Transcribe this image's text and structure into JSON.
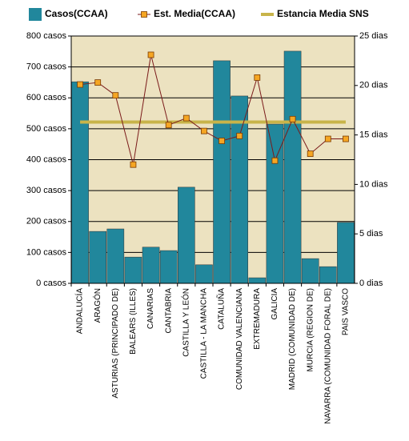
{
  "chart_data": {
    "type": "bar_line",
    "categories": [
      "ANDALUCÍA",
      "ARAGÓN",
      "ASTURIAS (PRINCIPADO DE)",
      "BALEARS (ILLES)",
      "CANARIAS",
      "CANTABRIA",
      "CASTILLA Y LEÓN",
      "CASTILLA - LA MANCHA",
      "CATALUÑA",
      "COMUNIDAD VALENCIANA",
      "EXTREMADURA",
      "GALICIA",
      "MADRID (COMUNIDAD DE)",
      "MURCIA (REGION DE)",
      "NAVARRA (COMUNIDAD FORAL DE)",
      "PAIS VASCO"
    ],
    "series": [
      {
        "name": "Casos(CCAA)",
        "type": "bar",
        "color": "#21879c",
        "values": [
          652,
          168,
          176,
          85,
          117,
          106,
          311,
          60,
          720,
          606,
          18,
          515,
          751,
          80,
          54,
          197
        ]
      },
      {
        "name": "Est. Media(CCAA)",
        "type": "line",
        "axis": "y2",
        "color": "#7a1a1a",
        "marker_color": "#f5a623",
        "values": [
          20.1,
          20.3,
          19.0,
          12.0,
          23.1,
          16.0,
          16.7,
          15.4,
          14.4,
          14.9,
          20.8,
          12.4,
          16.6,
          13.1,
          14.6,
          14.6
        ]
      },
      {
        "name": "Estancia Media SNS",
        "type": "line",
        "axis": "y2",
        "color": "#c8b44a",
        "values": [
          16.3,
          16.3,
          16.3,
          16.3,
          16.3,
          16.3,
          16.3,
          16.3,
          16.3,
          16.3,
          16.3,
          16.3,
          16.3,
          16.3,
          16.3,
          16.3
        ]
      }
    ],
    "ylim": [
      0,
      800
    ],
    "yticks": [
      {
        "value": 0,
        "label": "0 casos"
      },
      {
        "value": 100,
        "label": "100 casos"
      },
      {
        "value": 200,
        "label": "200 casos"
      },
      {
        "value": 300,
        "label": "300 casos"
      },
      {
        "value": 400,
        "label": "400 casos"
      },
      {
        "value": 500,
        "label": "500 casos"
      },
      {
        "value": 600,
        "label": "600 casos"
      },
      {
        "value": 700,
        "label": "700 casos"
      },
      {
        "value": 800,
        "label": "800 casos"
      }
    ],
    "y2lim": [
      0,
      25
    ],
    "y2ticks": [
      {
        "value": 0,
        "label": "0 dias"
      },
      {
        "value": 5,
        "label": "5 dias"
      },
      {
        "value": 10,
        "label": "10 dias"
      },
      {
        "value": 15,
        "label": "15 dias"
      },
      {
        "value": 20,
        "label": "20 dias"
      },
      {
        "value": 25,
        "label": "25 dias"
      }
    ],
    "grid": true,
    "background": "#ece2c0"
  }
}
